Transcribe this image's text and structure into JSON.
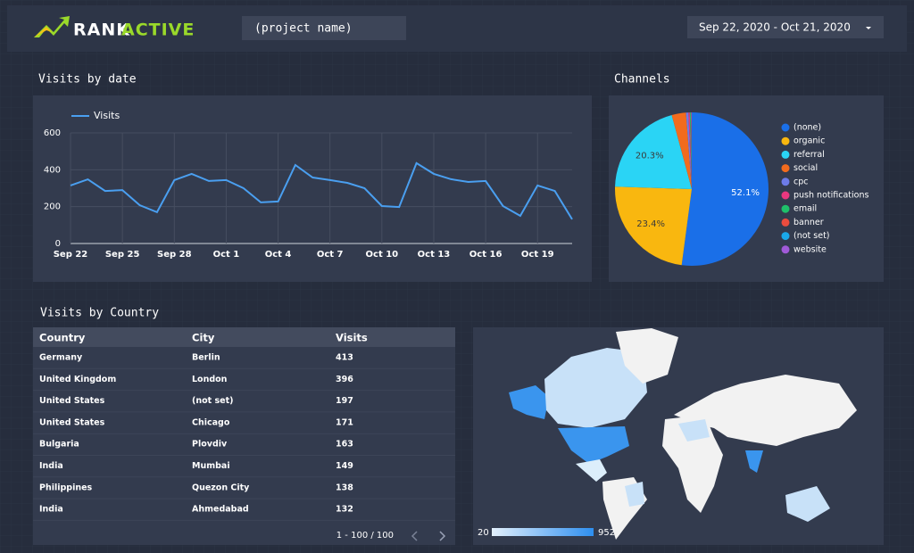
{
  "header": {
    "logo_rank": "RANK",
    "logo_active": "ACTIVE",
    "project": "(project name)",
    "date_range": "Sep 22, 2020 - Oct 21, 2020"
  },
  "sections": {
    "visits_by_date": "Visits by date",
    "channels": "Channels",
    "visits_by_country": "Visits by Country"
  },
  "chart_data": [
    {
      "type": "line",
      "categories": [
        "Sep 22",
        null,
        null,
        "Sep 25",
        null,
        null,
        "Sep 28",
        null,
        null,
        "Oct 1",
        null,
        null,
        "Oct 4",
        null,
        null,
        "Oct 7",
        null,
        null,
        "Oct 10",
        null,
        null,
        "Oct 13",
        null,
        null,
        "Oct 16",
        null,
        null,
        "Oct 19",
        null,
        null
      ],
      "series": [
        {
          "name": "Visits",
          "color": "#4a9ff0",
          "values": [
            315,
            348,
            285,
            290,
            208,
            170,
            344,
            378,
            339,
            344,
            300,
            223,
            228,
            426,
            358,
            344,
            329,
            300,
            203,
            198,
            436,
            378,
            349,
            334,
            339,
            203,
            150,
            315,
            285,
            131
          ]
        }
      ],
      "ylim": [
        0,
        600
      ],
      "yticks": [
        0,
        200,
        400,
        600
      ],
      "grid": true,
      "legend": "top-left"
    },
    {
      "type": "pie",
      "categories": [
        "(none)",
        "organic",
        "referral",
        "social",
        "cpc",
        "push notifications",
        "email",
        "banner",
        "(not set)",
        "website"
      ],
      "values": [
        52.1,
        23.4,
        20.3,
        3.0,
        0.5,
        0.3,
        0.2,
        0.1,
        0.05,
        0.05
      ],
      "value_labels": [
        "52.1%",
        "23.4%",
        "20.3%",
        null,
        null,
        null,
        null,
        null,
        null,
        null
      ],
      "colors": [
        "#1a6fe8",
        "#f9b70f",
        "#2ad4f5",
        "#f26b1d",
        "#6d7be8",
        "#e9377f",
        "#1fc06a",
        "#ea4c3e",
        "#1aa8e8",
        "#a05ad8"
      ],
      "legend": "right"
    }
  ],
  "table": {
    "columns": [
      "Country",
      "City",
      "Visits"
    ],
    "rows": [
      [
        "Germany",
        "Berlin",
        413
      ],
      [
        "United Kingdom",
        "London",
        396
      ],
      [
        "United States",
        "(not set)",
        197
      ],
      [
        "United States",
        "Chicago",
        171
      ],
      [
        "Bulgaria",
        "Plovdiv",
        163
      ],
      [
        "India",
        "Mumbai",
        149
      ],
      [
        "Philippines",
        "Quezon City",
        138
      ],
      [
        "India",
        "Ahmedabad",
        132
      ]
    ],
    "pagination": "1 - 100 / 100"
  },
  "map": {
    "legend_min": 20,
    "legend_max": 952
  }
}
